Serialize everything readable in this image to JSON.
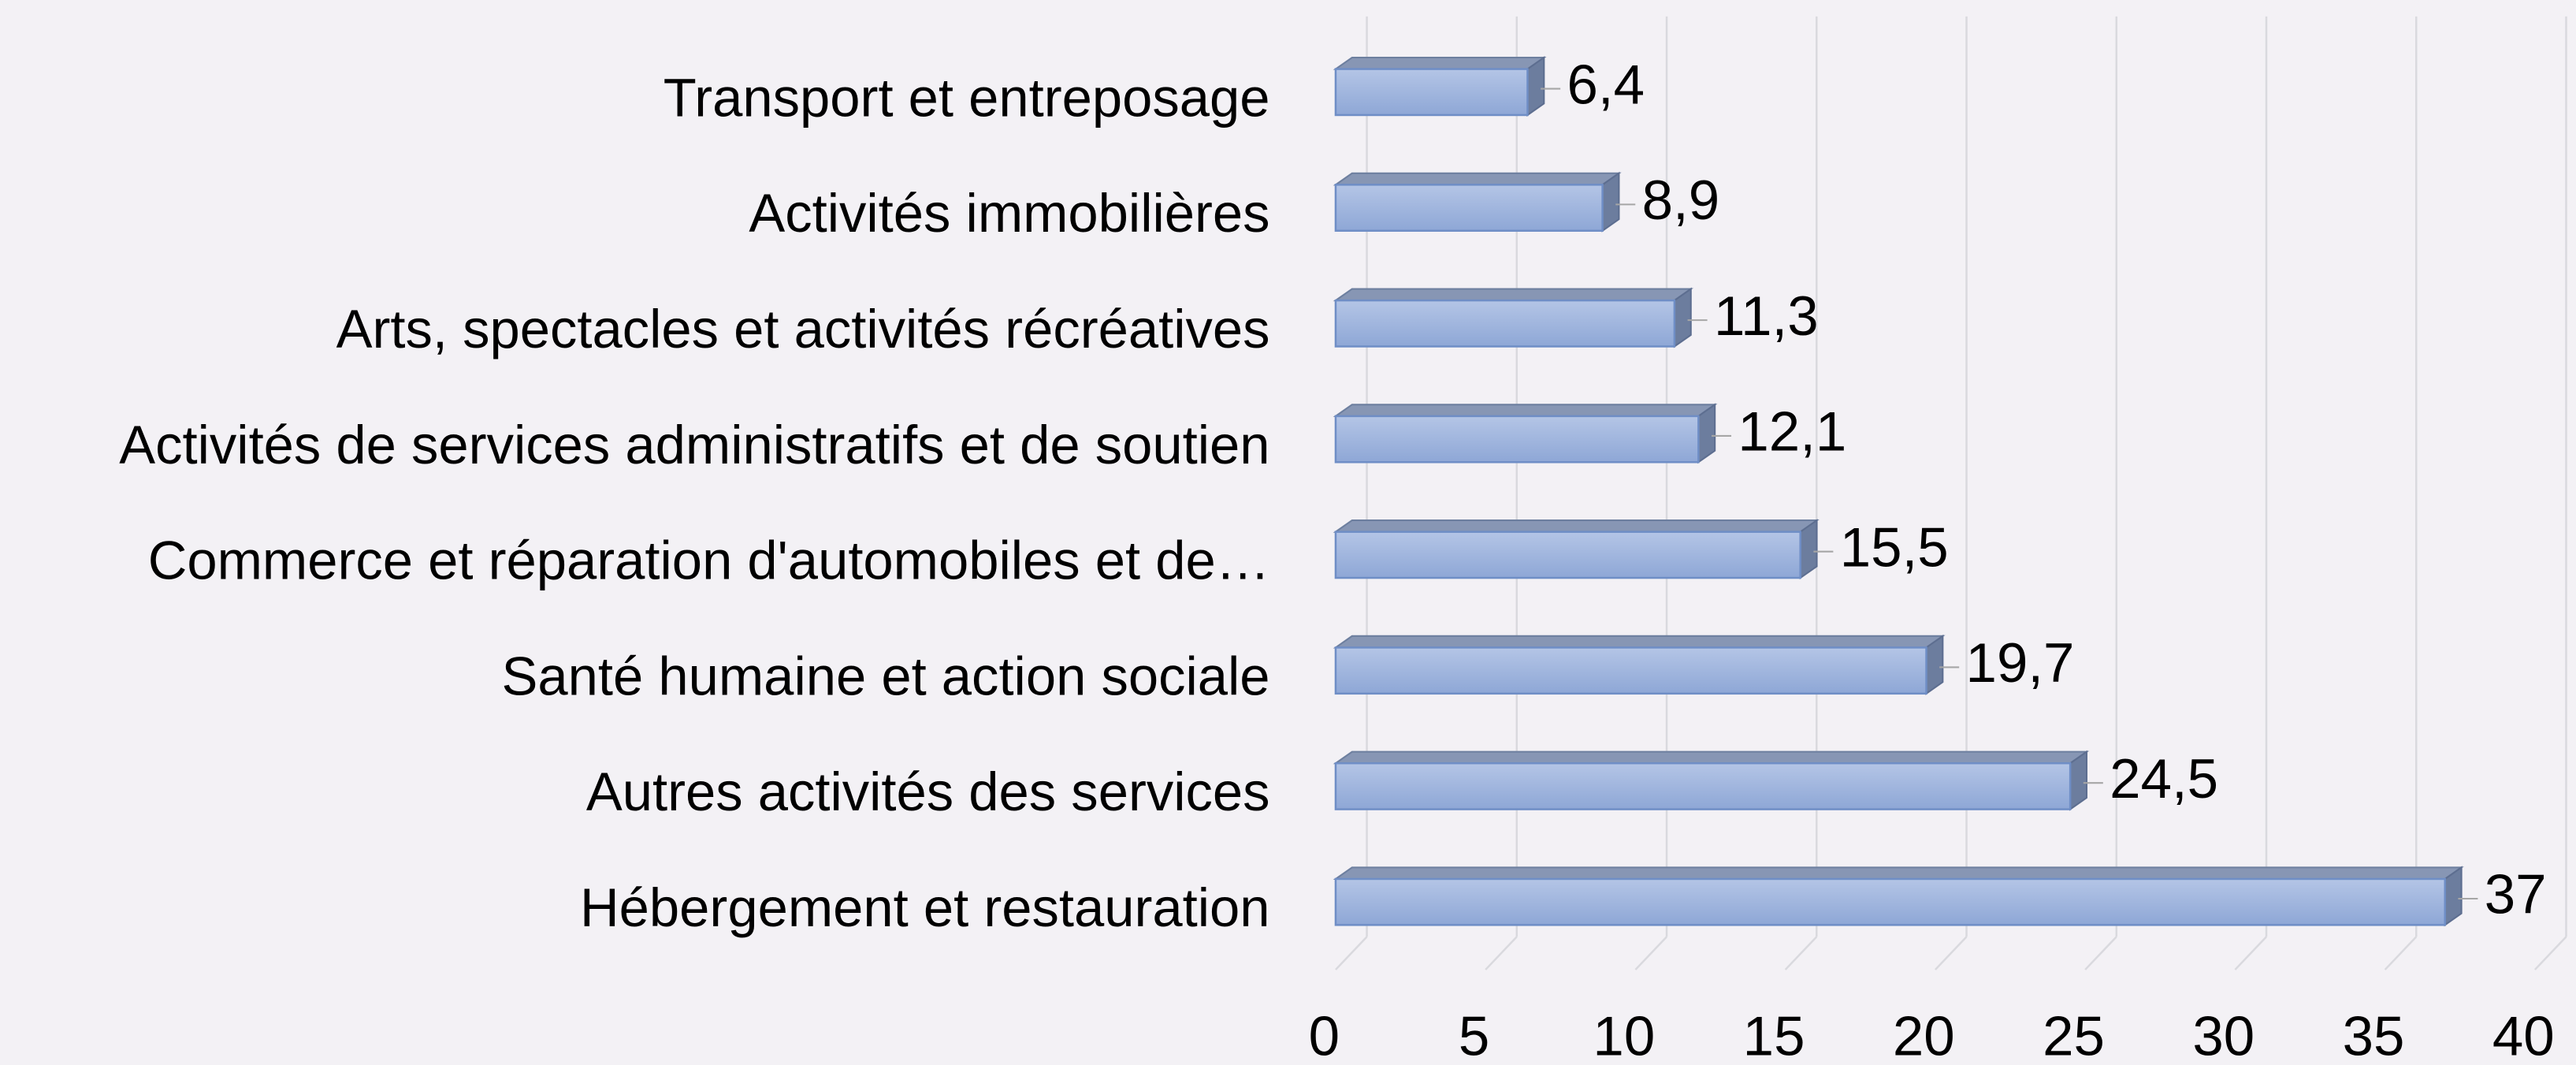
{
  "chart_data": {
    "type": "bar3d_horizontal",
    "categories": [
      "Transport et entreposage",
      "Activités immobilières",
      "Arts, spectacles et activités récréatives",
      "Activités de services administratifs et de soutien",
      "Commerce et réparation d'automobiles et de…",
      "Santé humaine et action sociale",
      "Autres activités des services",
      "Hébergement et restauration"
    ],
    "values": [
      6.4,
      8.9,
      11.3,
      12.1,
      15.5,
      19.7,
      24.5,
      37
    ],
    "value_labels": [
      "6,4",
      "8,9",
      "11,3",
      "12,1",
      "15,5",
      "19,7",
      "24,5",
      "37"
    ],
    "color": "#9fb4dd",
    "xlim": [
      0,
      40
    ],
    "xticks": [
      0,
      5,
      10,
      15,
      20,
      25,
      30,
      35,
      40
    ],
    "grid": true
  }
}
